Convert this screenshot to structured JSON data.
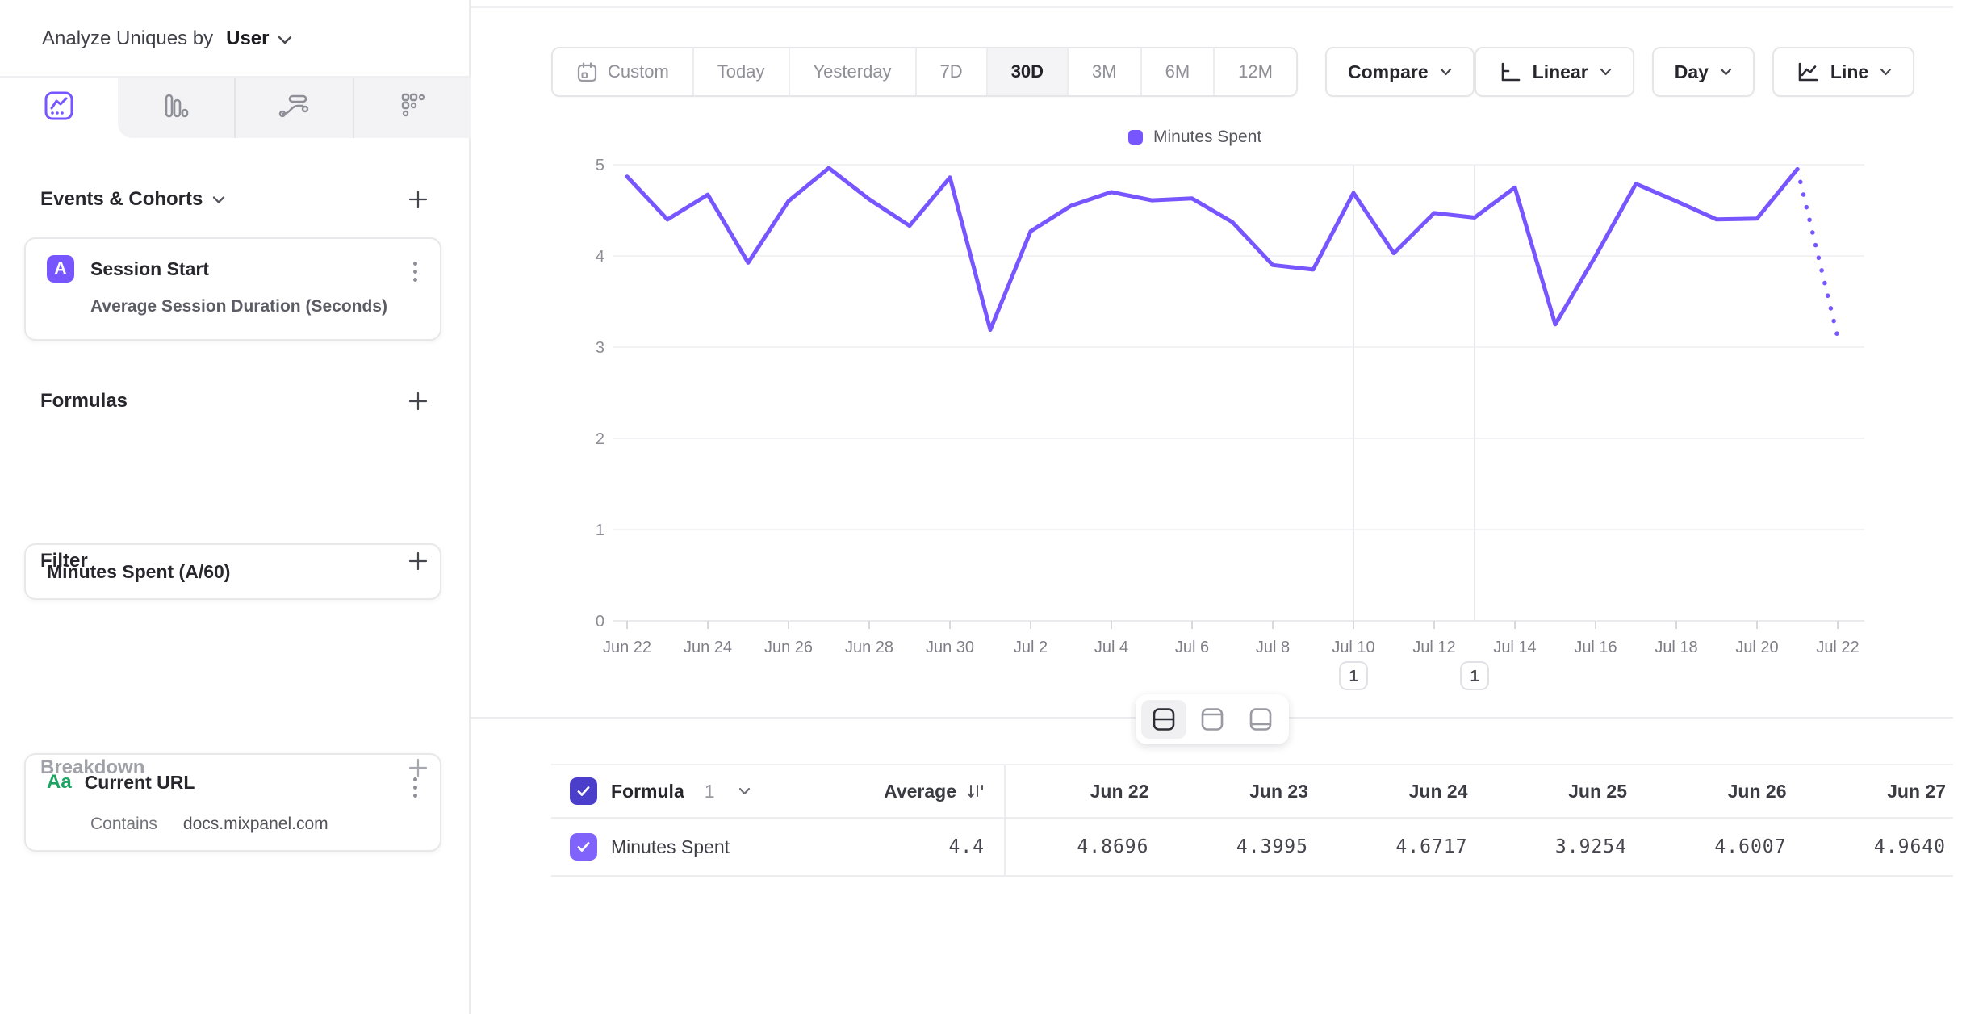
{
  "sidebar": {
    "analyze_label": "Analyze Uniques by",
    "analyze_value": "User",
    "tabs": [
      {
        "name": "insights",
        "active": true
      },
      {
        "name": "bars",
        "active": false
      },
      {
        "name": "flows",
        "active": false
      },
      {
        "name": "retention",
        "active": false
      }
    ],
    "events": {
      "title": "Events & Cohorts",
      "card": {
        "badge": "A",
        "title": "Session Start",
        "subtitle": "Average Session Duration (Seconds)"
      }
    },
    "formulas": {
      "title": "Formulas",
      "card": {
        "title": "Minutes Spent (A/60)"
      }
    },
    "filter": {
      "title": "Filter",
      "card": {
        "icon_label": "Aa",
        "title": "Current URL",
        "operator": "Contains",
        "value": "docs.mixpanel.com"
      }
    },
    "breakdown": {
      "title": "Breakdown"
    }
  },
  "toolbar": {
    "ranges": [
      "Custom",
      "Today",
      "Yesterday",
      "7D",
      "30D",
      "3M",
      "6M",
      "12M"
    ],
    "active_range": "30D",
    "compare_label": "Compare",
    "scale_label": "Linear",
    "interval_label": "Day",
    "chart_type_label": "Line"
  },
  "chart_data": {
    "type": "line",
    "legend": {
      "label": "Minutes Spent",
      "position": "top-center"
    },
    "x": [
      "Jun 22",
      "Jun 23",
      "Jun 24",
      "Jun 25",
      "Jun 26",
      "Jun 27",
      "Jun 28",
      "Jun 29",
      "Jun 30",
      "Jul 1",
      "Jul 2",
      "Jul 3",
      "Jul 4",
      "Jul 5",
      "Jul 6",
      "Jul 7",
      "Jul 8",
      "Jul 9",
      "Jul 10",
      "Jul 11",
      "Jul 12",
      "Jul 13",
      "Jul 14",
      "Jul 15",
      "Jul 16",
      "Jul 17",
      "Jul 18",
      "Jul 19",
      "Jul 20",
      "Jul 21",
      "Jul 22"
    ],
    "x_tick_every": 2,
    "series": [
      {
        "name": "Minutes Spent",
        "color": "#7856FF",
        "values": [
          4.8696,
          4.3995,
          4.6717,
          3.9254,
          4.6007,
          4.964,
          4.62,
          4.33,
          4.86,
          3.19,
          4.27,
          4.55,
          4.7,
          4.61,
          4.63,
          4.37,
          3.9,
          3.85,
          4.69,
          4.03,
          4.47,
          4.42,
          4.75,
          3.25,
          4.0,
          4.79,
          4.6,
          4.4,
          4.41,
          4.95,
          3.11
        ],
        "last_segment_dotted": true
      }
    ],
    "ylim": [
      0,
      5
    ],
    "yticks": [
      0,
      1,
      2,
      3,
      4,
      5
    ],
    "grid": true,
    "annotations": [
      {
        "x": "Jul 10",
        "label": "1"
      },
      {
        "x": "Jul 13",
        "label": "1"
      }
    ]
  },
  "table": {
    "group_label": "Formula",
    "group_number": "1",
    "average_label": "Average",
    "columns": [
      "Jun 22",
      "Jun 23",
      "Jun 24",
      "Jun 25",
      "Jun 26",
      "Jun 27"
    ],
    "rows": [
      {
        "name": "Minutes Spent",
        "average": "4.4",
        "values": [
          "4.8696",
          "4.3995",
          "4.6717",
          "3.9254",
          "4.6007",
          "4.9640"
        ]
      }
    ]
  },
  "colors": {
    "accent": "#7856FF",
    "checkbox_header": "#4B3ECB",
    "checkbox_row": "#7F63FB",
    "filter_icon_green": "#1DA463",
    "gridline": "#EFEFF2",
    "axis_text": "#84848C"
  }
}
